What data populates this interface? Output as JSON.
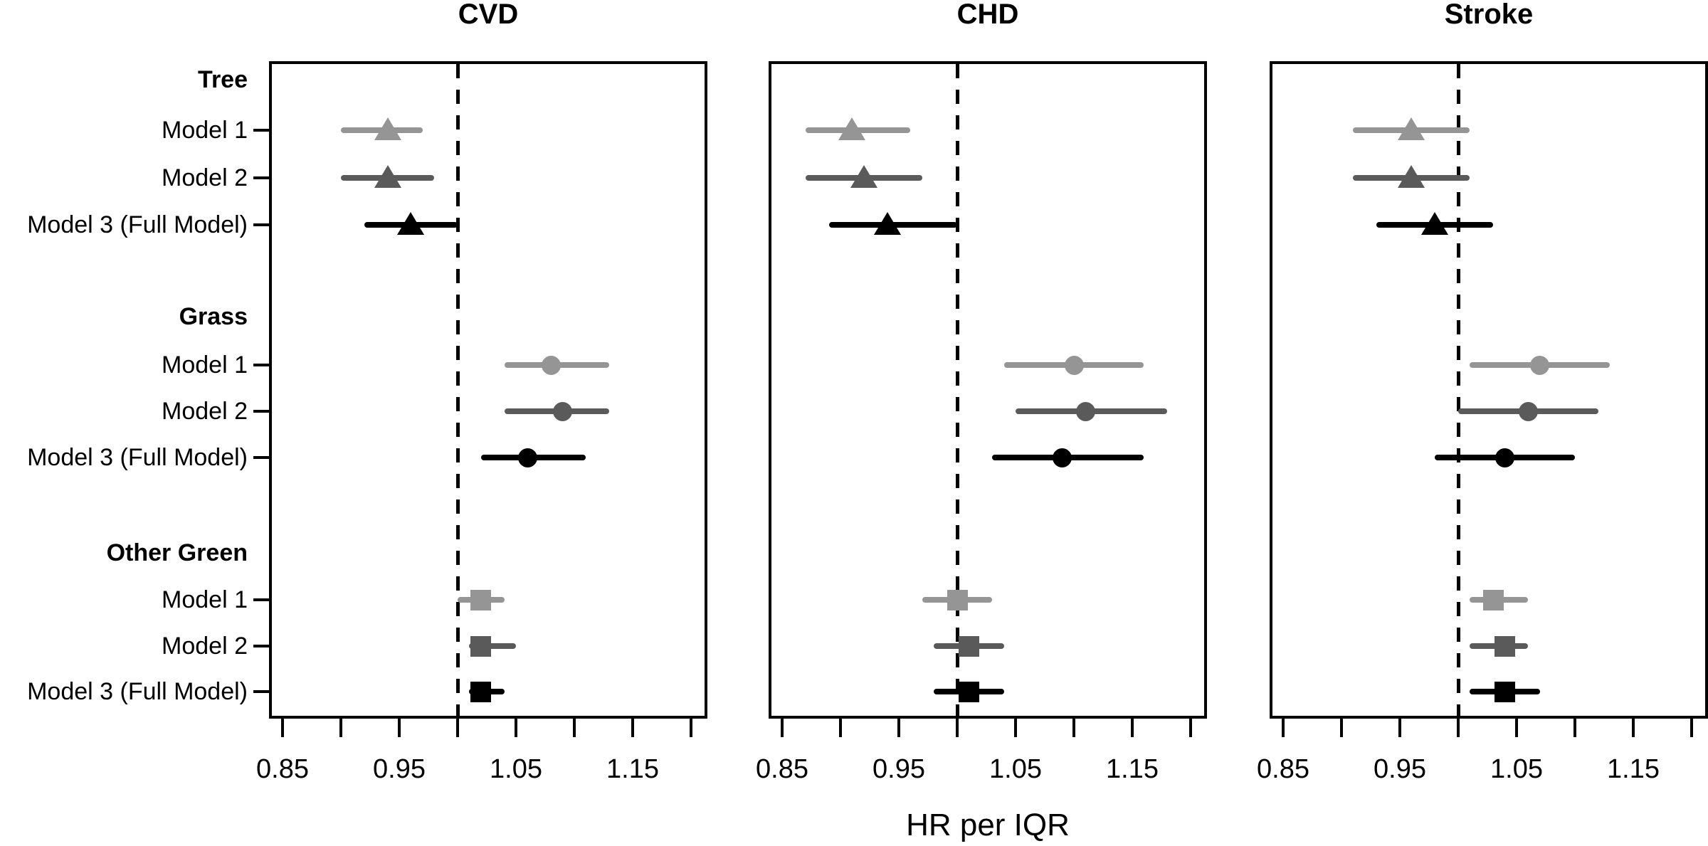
{
  "figure": {
    "kind": "forest plot, 3 panels",
    "xlabel": "HR per IQR"
  },
  "chart_data": {
    "type": "scatter",
    "subtype": "forest-plot",
    "xlabel": "HR per IQR",
    "x_axis": {
      "tick_values": [
        0.85,
        0.9,
        0.95,
        1.0,
        1.05,
        1.1,
        1.15,
        1.2
      ],
      "labeled_ticks": [
        "0.85",
        "0.95",
        "1.05",
        "1.15"
      ],
      "range": [
        0.838,
        1.214
      ],
      "reference_line": 1.0,
      "grid": false
    },
    "groups": [
      {
        "name": "Tree",
        "marker": "triangle"
      },
      {
        "name": "Grass",
        "marker": "circle"
      },
      {
        "name": "Other Green",
        "marker": "square"
      }
    ],
    "models": [
      {
        "name": "Model 1",
        "color": "#959595"
      },
      {
        "name": "Model 2",
        "color": "#5a5a5a"
      },
      {
        "name": "Model 3 (Full Model)",
        "color": "#000000"
      }
    ],
    "panels": [
      {
        "title": "CVD",
        "series": [
          {
            "group": "Tree",
            "estimates": [
              {
                "model": "Model 1",
                "hr": 0.94,
                "ci": [
                  0.9,
                  0.97
                ]
              },
              {
                "model": "Model 2",
                "hr": 0.94,
                "ci": [
                  0.9,
                  0.98
                ]
              },
              {
                "model": "Model 3 (Full Model)",
                "hr": 0.96,
                "ci": [
                  0.92,
                  1.0
                ]
              }
            ]
          },
          {
            "group": "Grass",
            "estimates": [
              {
                "model": "Model 1",
                "hr": 1.08,
                "ci": [
                  1.04,
                  1.13
                ]
              },
              {
                "model": "Model 2",
                "hr": 1.09,
                "ci": [
                  1.04,
                  1.13
                ]
              },
              {
                "model": "Model 3 (Full Model)",
                "hr": 1.06,
                "ci": [
                  1.02,
                  1.11
                ]
              }
            ]
          },
          {
            "group": "Other Green",
            "estimates": [
              {
                "model": "Model 1",
                "hr": 1.02,
                "ci": [
                  1.0,
                  1.04
                ]
              },
              {
                "model": "Model 2",
                "hr": 1.02,
                "ci": [
                  1.01,
                  1.05
                ]
              },
              {
                "model": "Model 3 (Full Model)",
                "hr": 1.02,
                "ci": [
                  1.01,
                  1.04
                ]
              }
            ]
          }
        ]
      },
      {
        "title": "CHD",
        "series": [
          {
            "group": "Tree",
            "estimates": [
              {
                "model": "Model 1",
                "hr": 0.91,
                "ci": [
                  0.87,
                  0.96
                ]
              },
              {
                "model": "Model 2",
                "hr": 0.92,
                "ci": [
                  0.87,
                  0.97
                ]
              },
              {
                "model": "Model 3 (Full Model)",
                "hr": 0.94,
                "ci": [
                  0.89,
                  1.0
                ]
              }
            ]
          },
          {
            "group": "Grass",
            "estimates": [
              {
                "model": "Model 1",
                "hr": 1.1,
                "ci": [
                  1.04,
                  1.16
                ]
              },
              {
                "model": "Model 2",
                "hr": 1.11,
                "ci": [
                  1.05,
                  1.18
                ]
              },
              {
                "model": "Model 3 (Full Model)",
                "hr": 1.09,
                "ci": [
                  1.03,
                  1.16
                ]
              }
            ]
          },
          {
            "group": "Other Green",
            "estimates": [
              {
                "model": "Model 1",
                "hr": 1.0,
                "ci": [
                  0.97,
                  1.03
                ]
              },
              {
                "model": "Model 2",
                "hr": 1.01,
                "ci": [
                  0.98,
                  1.04
                ]
              },
              {
                "model": "Model 3 (Full Model)",
                "hr": 1.01,
                "ci": [
                  0.98,
                  1.04
                ]
              }
            ]
          }
        ]
      },
      {
        "title": "Stroke",
        "series": [
          {
            "group": "Tree",
            "estimates": [
              {
                "model": "Model 1",
                "hr": 0.96,
                "ci": [
                  0.91,
                  1.01
                ]
              },
              {
                "model": "Model 2",
                "hr": 0.96,
                "ci": [
                  0.91,
                  1.01
                ]
              },
              {
                "model": "Model 3 (Full Model)",
                "hr": 0.98,
                "ci": [
                  0.93,
                  1.03
                ]
              }
            ]
          },
          {
            "group": "Grass",
            "estimates": [
              {
                "model": "Model 1",
                "hr": 1.07,
                "ci": [
                  1.01,
                  1.13
                ]
              },
              {
                "model": "Model 2",
                "hr": 1.06,
                "ci": [
                  1.0,
                  1.12
                ]
              },
              {
                "model": "Model 3 (Full Model)",
                "hr": 1.04,
                "ci": [
                  0.98,
                  1.1
                ]
              }
            ]
          },
          {
            "group": "Other Green",
            "estimates": [
              {
                "model": "Model 1",
                "hr": 1.03,
                "ci": [
                  1.01,
                  1.06
                ]
              },
              {
                "model": "Model 2",
                "hr": 1.04,
                "ci": [
                  1.01,
                  1.06
                ]
              },
              {
                "model": "Model 3 (Full Model)",
                "hr": 1.04,
                "ci": [
                  1.01,
                  1.07
                ]
              }
            ]
          }
        ]
      }
    ]
  }
}
